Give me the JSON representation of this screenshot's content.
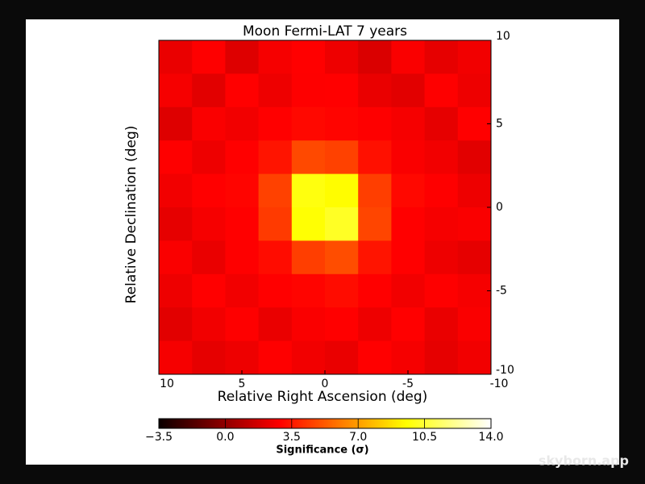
{
  "chart_data": {
    "type": "heatmap",
    "title": "Moon Fermi-LAT 7 years",
    "xlabel": "Relative Right Ascension (deg)",
    "ylabel": "Relative Declination (deg)",
    "xlim": [
      10,
      -10
    ],
    "ylim": [
      -10,
      10
    ],
    "xticks": [
      10,
      5,
      0,
      -5,
      -10
    ],
    "yticks": [
      -10,
      -5,
      0,
      5,
      10
    ],
    "colormap": "hot",
    "clim": [
      -3.5,
      14
    ],
    "colorbar_label": "Significance (σ)",
    "colorbar_ticks": [
      {
        "value": -3.5,
        "label": "−3.5"
      },
      {
        "value": 0,
        "label": "0.0"
      },
      3.5,
      {
        "value": 7,
        "label": "7.0"
      },
      10.5,
      {
        "value": 14,
        "label": "14.0"
      }
    ],
    "z": [
      [
        2.1,
        2.6,
        1.8,
        2.4,
        2.9,
        2.2,
        1.7,
        2.5,
        2.0,
        2.3
      ],
      [
        2.4,
        1.9,
        2.7,
        2.2,
        2.6,
        2.8,
        2.1,
        1.9,
        2.6,
        2.2
      ],
      [
        1.8,
        2.5,
        2.3,
        2.9,
        3.1,
        3.0,
        2.6,
        2.4,
        2.0,
        2.7
      ],
      [
        2.6,
        2.2,
        2.8,
        3.4,
        4.8,
        4.6,
        3.3,
        2.5,
        2.3,
        1.9
      ],
      [
        2.3,
        2.7,
        3.0,
        4.6,
        9.8,
        9.5,
        4.5,
        3.1,
        2.6,
        2.2
      ],
      [
        2.0,
        2.4,
        2.9,
        4.4,
        9.6,
        10.2,
        4.7,
        2.9,
        2.4,
        2.5
      ],
      [
        2.5,
        2.1,
        2.6,
        3.2,
        4.5,
        4.9,
        3.4,
        2.7,
        2.2,
        2.0
      ],
      [
        2.2,
        2.8,
        2.3,
        2.7,
        3.0,
        3.2,
        2.8,
        2.3,
        2.6,
        2.4
      ],
      [
        1.9,
        2.3,
        2.6,
        2.1,
        2.5,
        2.7,
        2.2,
        2.8,
        2.1,
        2.5
      ],
      [
        2.4,
        2.0,
        2.2,
        2.6,
        2.3,
        2.1,
        2.7,
        2.4,
        2.0,
        2.3
      ]
    ]
  },
  "watermark": "skyborn.app"
}
